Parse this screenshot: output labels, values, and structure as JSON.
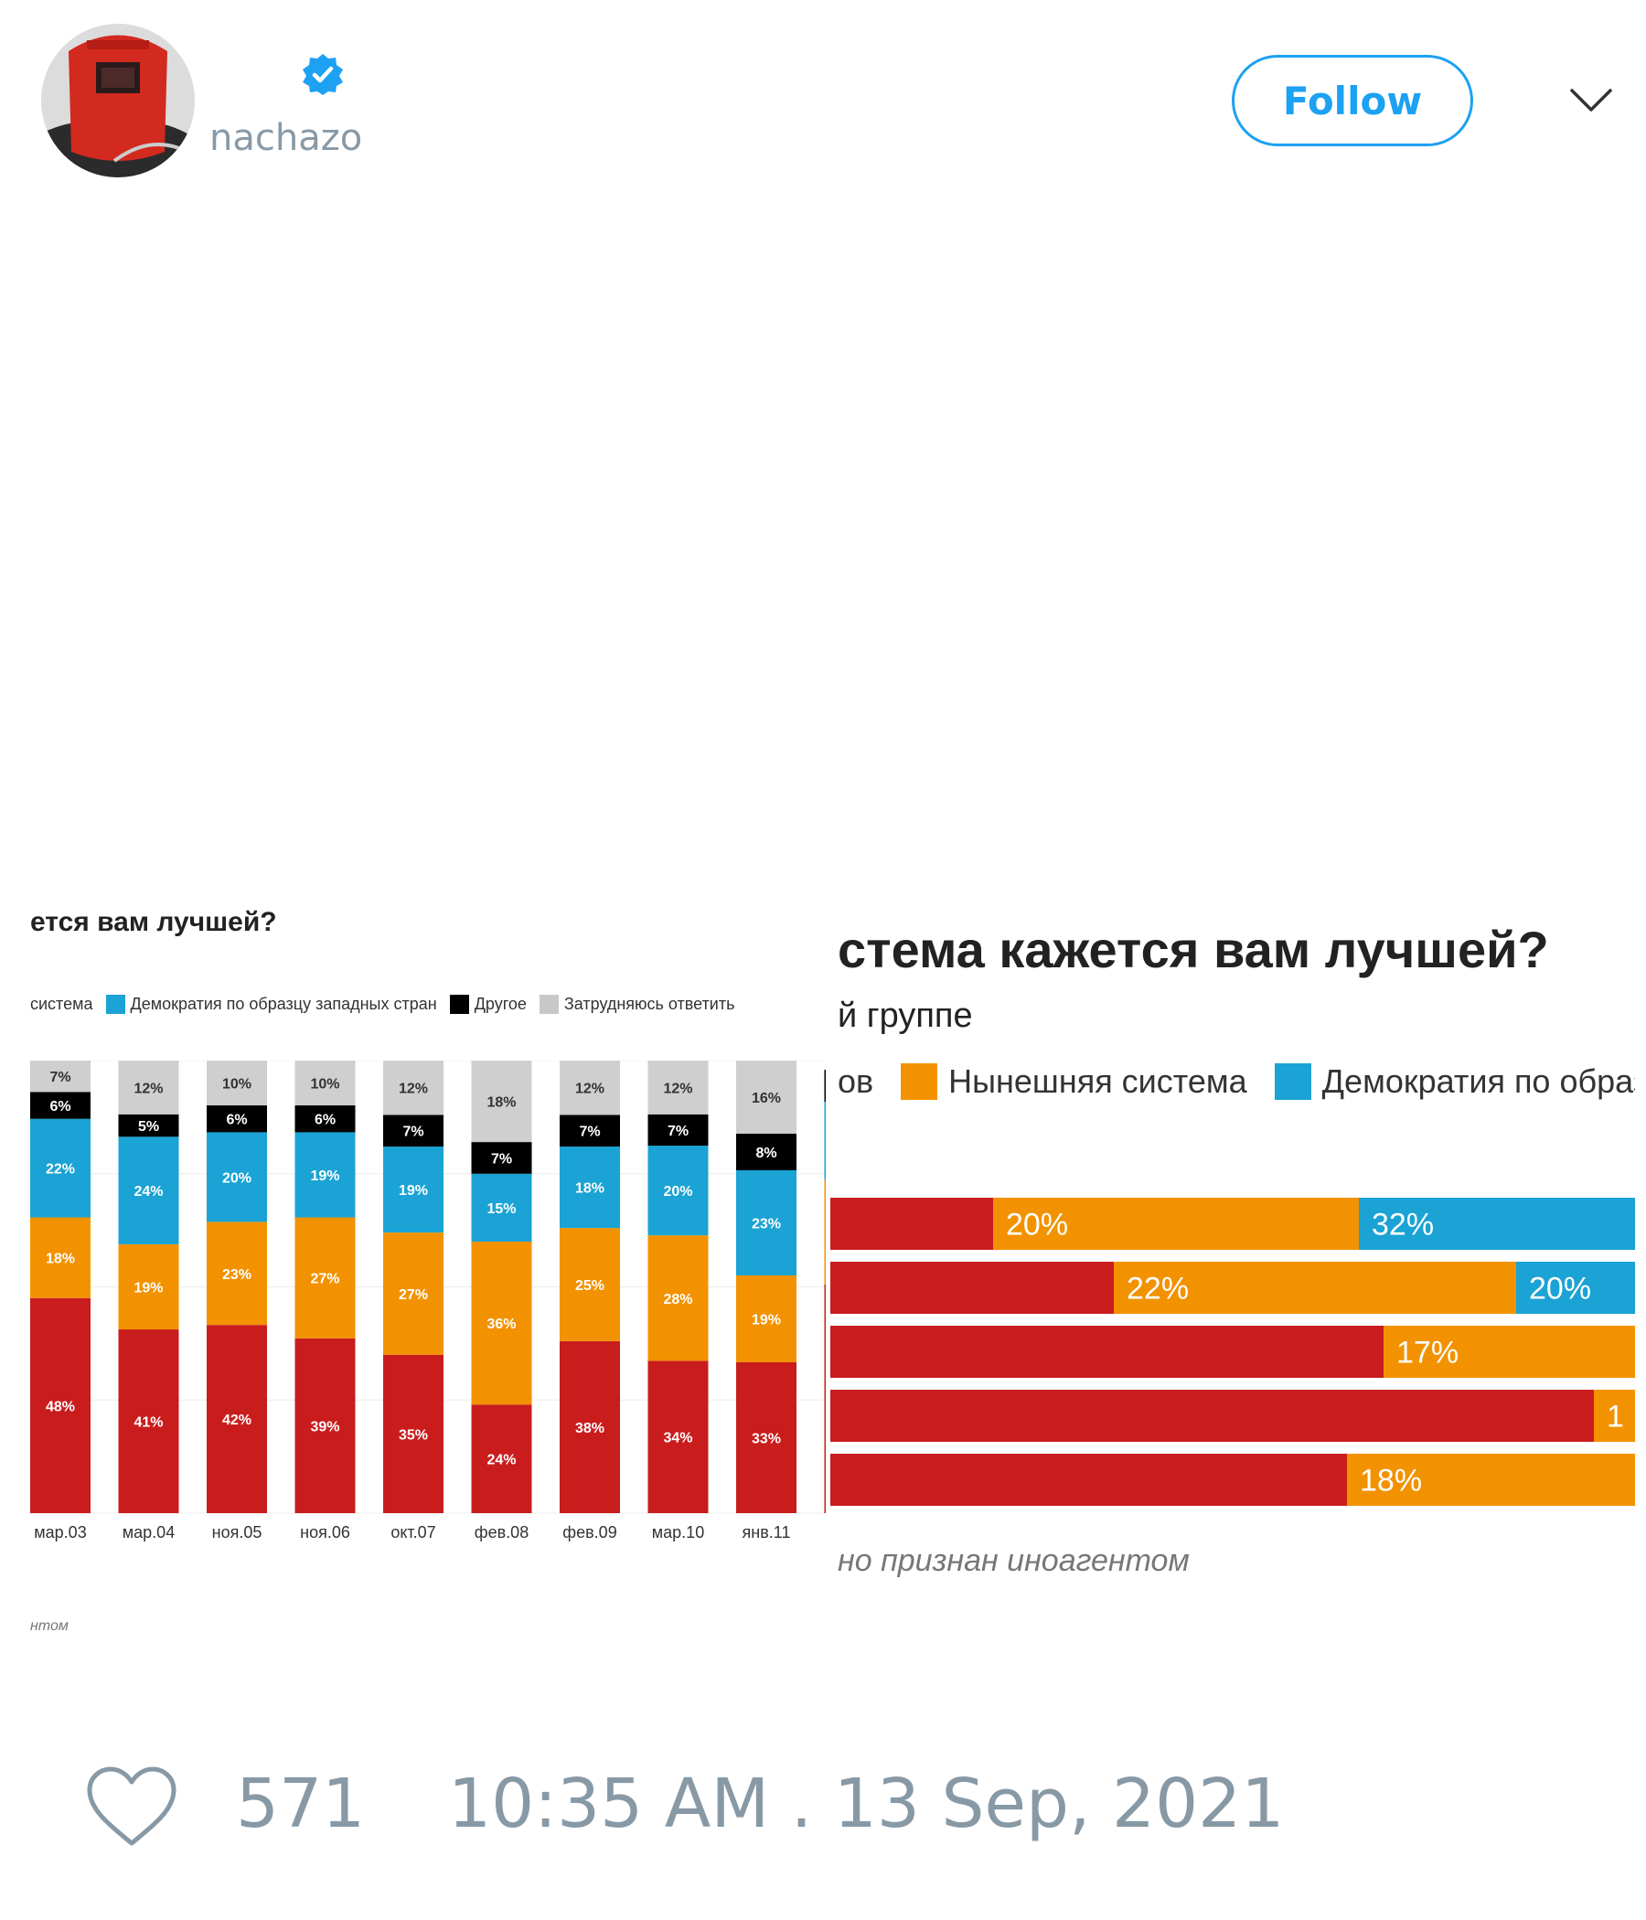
{
  "tweet": {
    "handle": "nachazo",
    "follow_label": "Follow",
    "likes": "571",
    "timestamp": "10:35 AM . 13 Sep, 2021",
    "icons": [
      "avatar-photo",
      "verified-badge-icon",
      "chevron-down-icon",
      "heart-icon"
    ]
  },
  "left_image": {
    "title": "ется вам лучшей?",
    "footnote": "нтом",
    "legend": [
      {
        "label": "система",
        "color": ""
      },
      {
        "label": "Демократия по образцу западных стран",
        "color": "#1aa3d4"
      },
      {
        "label": "Другое",
        "color": "#000000"
      },
      {
        "label": "Затрудняюсь ответить",
        "color": "#c8c8c8"
      }
    ]
  },
  "right_image": {
    "title": "стема кажется вам лучшей?",
    "subtitle": "й группе",
    "footnote": "но признан иноагентом",
    "legend": [
      {
        "label": "ов",
        "color": ""
      },
      {
        "label": "Нынешняя система",
        "color": "#f39200"
      },
      {
        "label": "Демократия по образц",
        "color": "#1aa3d4"
      }
    ]
  },
  "chart_data": [
    {
      "type": "bar",
      "stacked": true,
      "orientation": "vertical",
      "title": "ется вам лучшей?",
      "categories": [
        "мар.03",
        "мар.04",
        "ноя.05",
        "ноя.06",
        "окт.07",
        "фев.08",
        "фев.09",
        "мар.10",
        "янв.11"
      ],
      "colors": [
        "#c91d1d",
        "#f39200",
        "#1aa3d4",
        "#000000",
        "#cfcfcf"
      ],
      "series": [
        {
          "name": "",
          "values": [
            48,
            41,
            42,
            39,
            35,
            24,
            38,
            34,
            33
          ]
        },
        {
          "name": "",
          "values": [
            18,
            19,
            23,
            27,
            27,
            36,
            25,
            28,
            19
          ]
        },
        {
          "name": "Демократия по образцу западных стран",
          "values": [
            22,
            24,
            20,
            19,
            19,
            15,
            18,
            20,
            23
          ]
        },
        {
          "name": "Другое",
          "values": [
            6,
            5,
            6,
            6,
            7,
            7,
            7,
            7,
            8
          ]
        },
        {
          "name": "Затрудняюсь ответить",
          "values": [
            7,
            12,
            10,
            10,
            12,
            18,
            12,
            12,
            16
          ]
        }
      ],
      "ylim": [
        0,
        100
      ]
    },
    {
      "type": "bar",
      "stacked": true,
      "orientation": "horizontal",
      "title": "стема кажется вам лучшей?",
      "categories": [
        "",
        "",
        "",
        "",
        ""
      ],
      "colors": [
        "#c91d1d",
        "#f39200",
        "#1aa3d4"
      ],
      "series": [
        {
          "name": "",
          "values": [
            null,
            null,
            null,
            null,
            null
          ]
        },
        {
          "name": "Нынешняя система",
          "values": [
            20,
            22,
            17,
            1,
            18
          ]
        },
        {
          "name": "Демократия по образц",
          "values": [
            32,
            20,
            null,
            null,
            null
          ]
        }
      ],
      "visible_labels": [
        [
          "20%",
          "32%"
        ],
        [
          "22%",
          "20%"
        ],
        [
          "17%"
        ],
        [
          "1"
        ],
        [
          "18%"
        ]
      ]
    }
  ]
}
